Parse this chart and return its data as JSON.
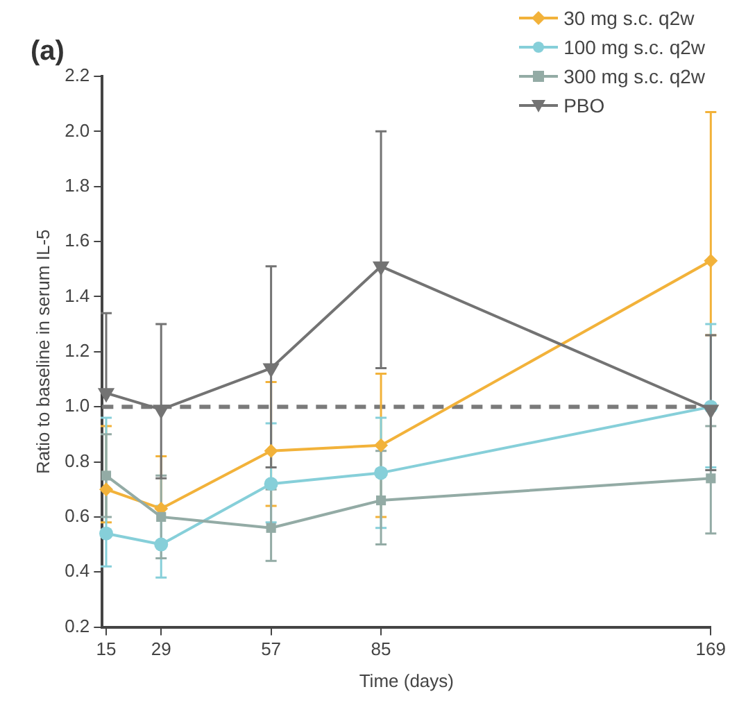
{
  "chart_data": {
    "type": "line",
    "title": "(a)",
    "xlabel": "Time (days)",
    "ylabel": "Ratio to baseline in serum IL-5",
    "x": [
      15,
      29,
      57,
      85,
      169
    ],
    "series": [
      {
        "name": "30 mg s.c. q2w",
        "color": "#f2b23a",
        "marker": "diamond",
        "values": [
          0.7,
          0.63,
          0.84,
          0.86,
          1.53
        ],
        "errors": [
          [
            0.58,
            0.93
          ],
          [
            0.63,
            0.82
          ],
          [
            0.64,
            1.09
          ],
          [
            0.6,
            1.12
          ],
          [
            1.26,
            2.07
          ]
        ]
      },
      {
        "name": "100 mg s.c. q2w",
        "color": "#86cfd9",
        "marker": "circle",
        "values": [
          0.54,
          0.5,
          0.72,
          0.76,
          1.0
        ],
        "errors": [
          [
            0.42,
            0.96
          ],
          [
            0.38,
            0.64
          ],
          [
            0.58,
            0.94
          ],
          [
            0.56,
            0.96
          ],
          [
            0.78,
            1.3
          ]
        ]
      },
      {
        "name": "300 mg s.c. q2w",
        "color": "#93aba5",
        "marker": "square",
        "values": [
          0.75,
          0.6,
          0.56,
          0.66,
          0.74
        ],
        "errors": [
          [
            0.6,
            0.9
          ],
          [
            0.45,
            0.75
          ],
          [
            0.44,
            0.7
          ],
          [
            0.5,
            0.84
          ],
          [
            0.54,
            0.93
          ]
        ]
      },
      {
        "name": "PBO",
        "color": "#737373",
        "marker": "triangle",
        "values": [
          1.05,
          0.99,
          1.14,
          1.51,
          0.99
        ],
        "errors": [
          [
            1.05,
            1.34
          ],
          [
            0.74,
            1.3
          ],
          [
            0.78,
            1.51
          ],
          [
            1.14,
            2.0
          ],
          [
            0.77,
            1.26
          ]
        ]
      }
    ],
    "xlim": [
      14,
      169
    ],
    "xticks": [
      15,
      29,
      57,
      85,
      169
    ],
    "ylim": [
      0.2,
      2.2
    ],
    "yticks": [
      0.2,
      0.4,
      0.6,
      0.8,
      {
        "value": 1,
        "label": "1.0"
      },
      1.2,
      1.4,
      1.6,
      1.8,
      {
        "value": 2,
        "label": "2.0"
      },
      2.2
    ],
    "ref_lines": [
      {
        "axis": "y",
        "value": 1.0,
        "color": "#7a7a7a",
        "line_style": "dashed"
      }
    ],
    "grid": false,
    "legend": "top right"
  }
}
